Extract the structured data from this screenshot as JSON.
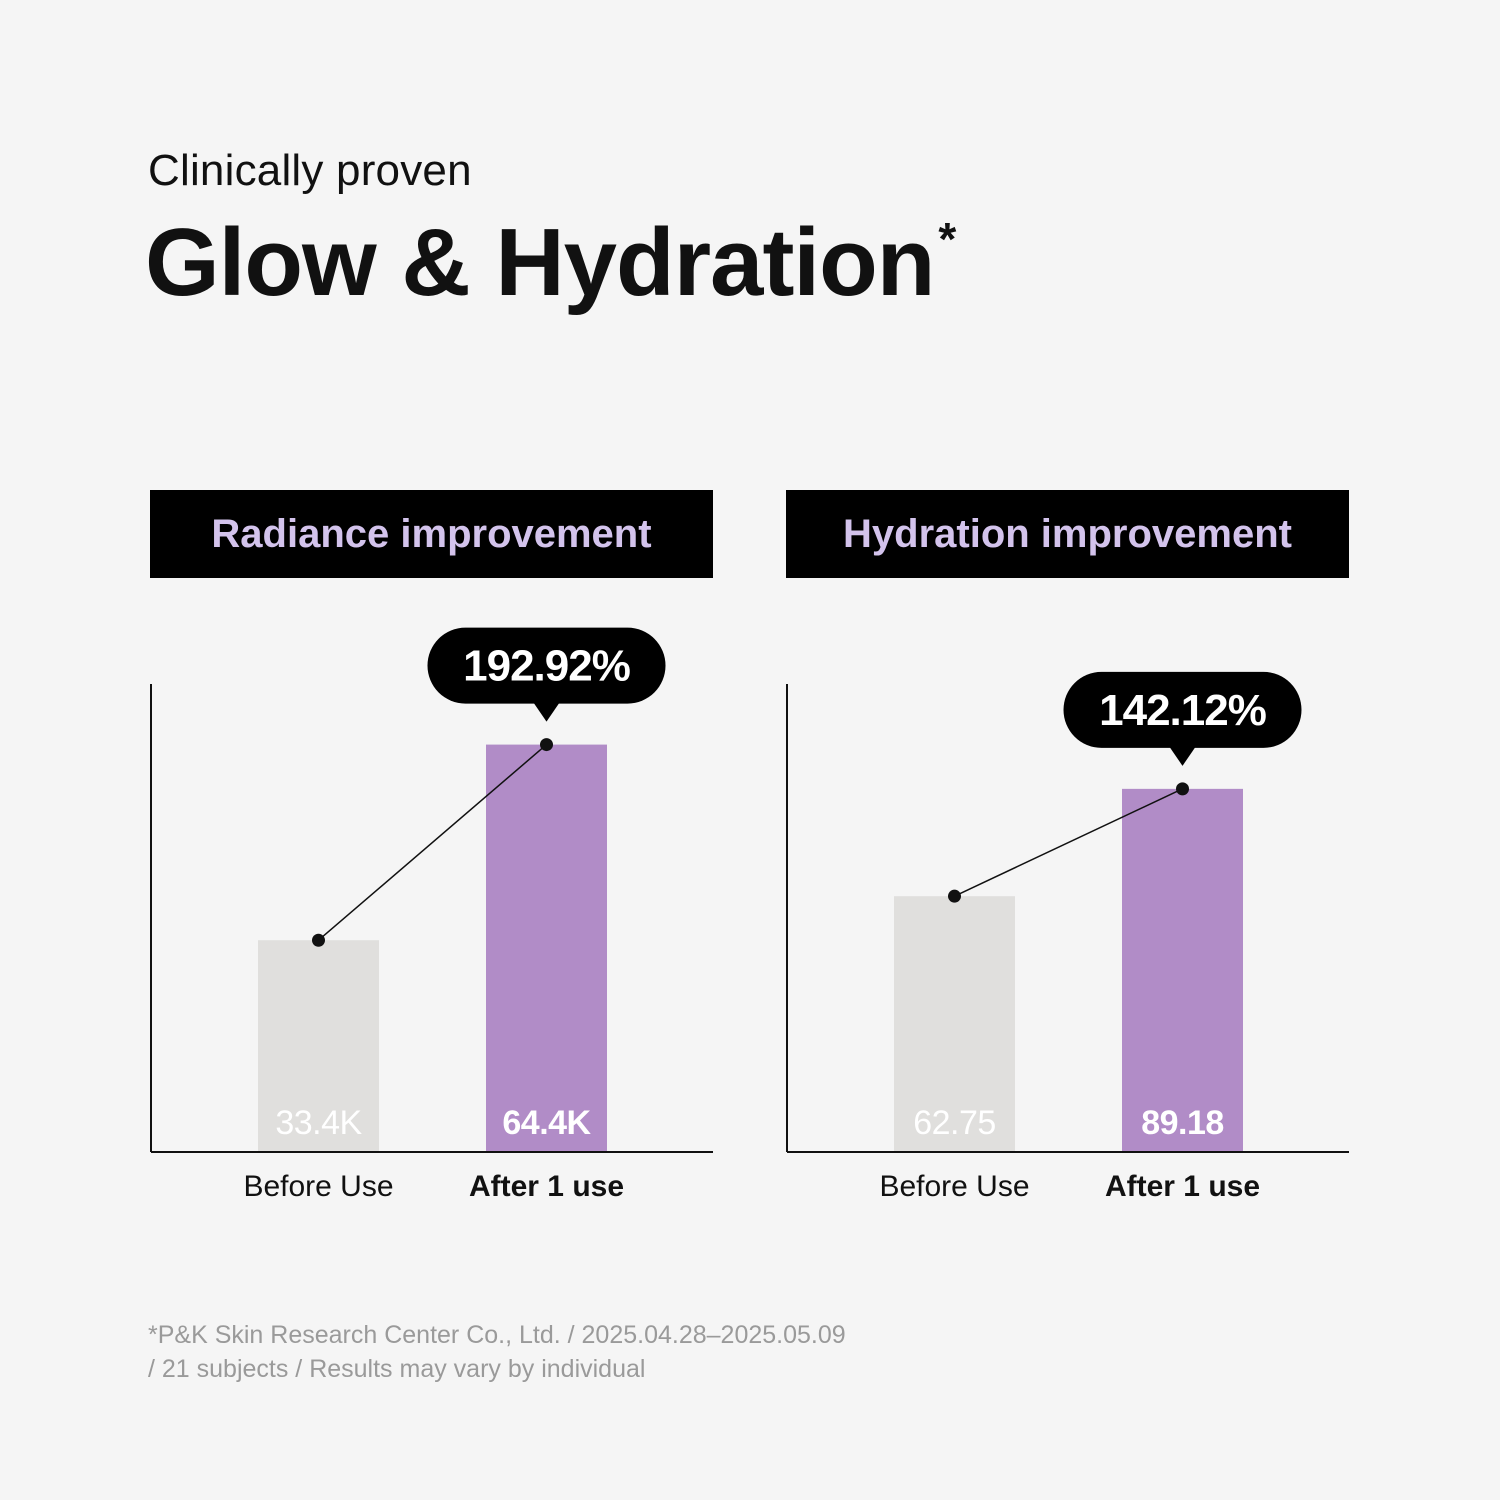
{
  "eyebrow": "Clinically proven",
  "headline": "Glow & Hydration",
  "headline_mark": "*",
  "colors": {
    "background": "#f5f5f5",
    "before_bar": "#e0dfdd",
    "after_bar": "#b18cc7",
    "header_bg": "#000000",
    "header_text": "#d3c3ec",
    "callout": "#000000"
  },
  "chart_data": [
    {
      "type": "bar",
      "title": "Radiance improvement",
      "categories": [
        "Before Use",
        "After 1 use"
      ],
      "values": [
        33.4,
        64.4
      ],
      "value_labels": [
        "33.4K",
        "64.4K"
      ],
      "unit": "K",
      "callout": "192.92%",
      "ylim": [
        0,
        74
      ]
    },
    {
      "type": "bar",
      "title": "Hydration improvement",
      "categories": [
        "Before Use",
        "After 1 use"
      ],
      "values": [
        62.75,
        89.18
      ],
      "value_labels": [
        "62.75",
        "89.18"
      ],
      "unit": "",
      "callout": "142.12%",
      "ylim": [
        0,
        115
      ]
    }
  ],
  "footnote": {
    "line1": "*P&K Skin Research Center Co., Ltd. / 2025.04.28–2025.05.09",
    "line2": "/ 21 subjects / Results may vary by individual"
  }
}
